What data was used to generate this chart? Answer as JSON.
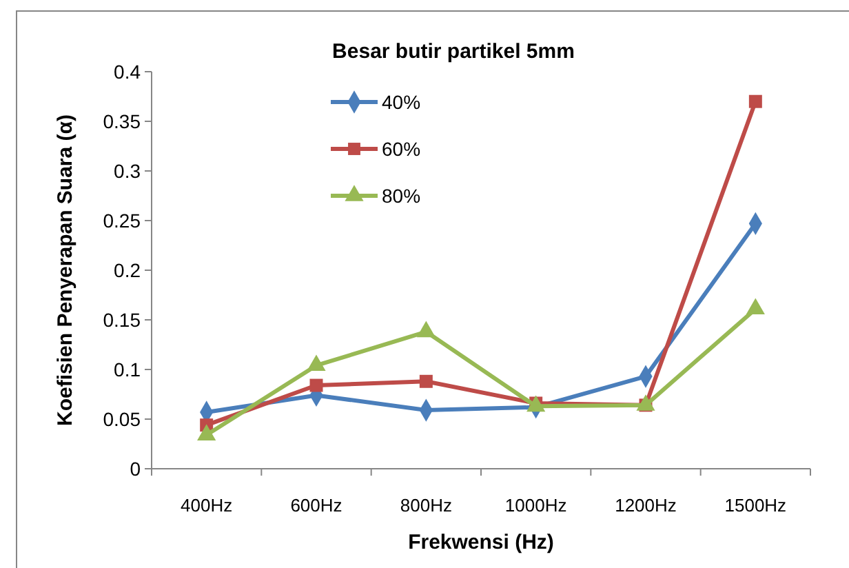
{
  "chart_data": {
    "type": "line",
    "title": "Besar butir partikel 5mm",
    "xlabel": "Frekwensi (Hz)",
    "ylabel": "Koefisien Penyerapan Suara (α)",
    "categories": [
      "400Hz",
      "600Hz",
      "800Hz",
      "1000Hz",
      "1200Hz",
      "1500Hz"
    ],
    "series": [
      {
        "name": "40%",
        "color": "#4a7ebb",
        "marker": "diamond",
        "values": [
          0.057,
          0.074,
          0.059,
          0.062,
          0.093,
          0.247
        ]
      },
      {
        "name": "60%",
        "color": "#be4b48",
        "marker": "square",
        "values": [
          0.044,
          0.084,
          0.088,
          0.066,
          0.064,
          0.37
        ]
      },
      {
        "name": "80%",
        "color": "#98b954",
        "marker": "triangle",
        "values": [
          0.034,
          0.104,
          0.138,
          0.063,
          0.064,
          0.161
        ]
      }
    ],
    "ylim": [
      0,
      0.4
    ],
    "yticks": [
      0,
      0.05,
      0.1,
      0.15,
      0.2,
      0.25,
      0.3,
      0.35,
      0.4
    ],
    "legend": "top",
    "grid": false
  }
}
